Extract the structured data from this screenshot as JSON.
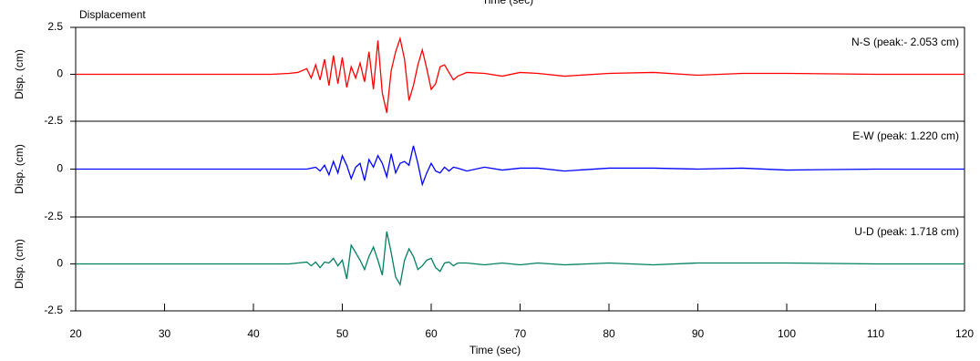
{
  "chart_data": [
    {
      "type": "line",
      "title": "Displacement",
      "xlabel": "Time (sec)",
      "ylabel": "Disp. (cm)",
      "xlim": [
        20,
        120
      ],
      "ylim": [
        -2.5,
        2.5
      ],
      "yticks": [
        2.5,
        0,
        -2.5
      ],
      "x": [
        20,
        42,
        44,
        45,
        46,
        46.5,
        47,
        47.5,
        48,
        48.5,
        49,
        49.5,
        50,
        50.5,
        51,
        51.5,
        52,
        52.5,
        53,
        53.5,
        54,
        54.5,
        55,
        55.5,
        56,
        56.5,
        57,
        57.5,
        58,
        58.5,
        59,
        59.5,
        60,
        60.5,
        61,
        61.5,
        62,
        62.5,
        63,
        64,
        66,
        68,
        70,
        72,
        75,
        80,
        85,
        90,
        95,
        100,
        110,
        120
      ],
      "series": [
        {
          "name": "N-S (peak:- 2.053 cm)",
          "color": "#ff0000",
          "values": [
            0,
            0,
            0.05,
            0.1,
            0.3,
            -0.2,
            0.5,
            -0.3,
            0.8,
            -0.6,
            1.0,
            -0.5,
            0.9,
            -0.7,
            0.4,
            -0.2,
            0.6,
            -0.4,
            1.2,
            -0.8,
            1.8,
            -1.0,
            -2.05,
            0.2,
            1.2,
            1.9,
            0.8,
            -1.4,
            -0.6,
            0.5,
            1.3,
            0.3,
            -0.8,
            -0.5,
            0.4,
            0.5,
            0.1,
            -0.3,
            -0.1,
            0.1,
            0.05,
            -0.1,
            0.1,
            0.05,
            -0.1,
            0.05,
            0.1,
            -0.05,
            0.05,
            0.05,
            0,
            0
          ]
        }
      ]
    },
    {
      "type": "line",
      "ylabel": "Disp. (cm)",
      "xlim": [
        20,
        120
      ],
      "ylim": [
        -2.5,
        2.5
      ],
      "yticks": [
        0,
        -2.5
      ],
      "x": [
        20,
        42,
        44,
        45,
        46,
        46.5,
        47,
        47.5,
        48,
        48.5,
        49,
        49.5,
        50,
        50.5,
        51,
        51.5,
        52,
        52.5,
        53,
        53.5,
        54,
        54.5,
        55,
        55.5,
        56,
        56.5,
        57,
        57.5,
        58,
        58.5,
        59,
        59.5,
        60,
        60.5,
        61,
        61.5,
        62,
        62.5,
        63,
        64,
        66,
        68,
        70,
        72,
        75,
        80,
        85,
        90,
        95,
        100,
        110,
        120
      ],
      "series": [
        {
          "name": "E-W (peak: 1.220 cm)",
          "color": "#0000ff",
          "values": [
            0,
            0,
            0,
            0,
            0,
            0.05,
            0.1,
            -0.1,
            0.2,
            -0.3,
            0.4,
            -0.2,
            0.7,
            0.2,
            -0.5,
            0.1,
            0.3,
            -0.6,
            0.5,
            0.1,
            0.7,
            0.3,
            -0.4,
            0.8,
            -0.2,
            0.3,
            0.4,
            0.2,
            1.22,
            0.3,
            -0.8,
            -0.2,
            0.3,
            -0.1,
            -0.2,
            0.1,
            -0.1,
            0.1,
            0.05,
            -0.1,
            0.1,
            -0.05,
            0.05,
            0.05,
            -0.1,
            0.05,
            0.05,
            0,
            0.05,
            -0.05,
            0,
            0
          ]
        }
      ]
    },
    {
      "type": "line",
      "xlabel": "Time (sec)",
      "ylabel": "Disp. (cm)",
      "xlim": [
        20,
        120
      ],
      "xticks": [
        20,
        30,
        40,
        50,
        60,
        70,
        80,
        90,
        100,
        110,
        120
      ],
      "ylim": [
        -2.5,
        2.5
      ],
      "yticks": [
        0,
        -2.5
      ],
      "x": [
        20,
        42,
        44,
        45,
        46,
        46.5,
        47,
        47.5,
        48,
        48.5,
        49,
        49.5,
        50,
        50.5,
        51,
        51.5,
        52,
        52.5,
        53,
        53.5,
        54,
        54.5,
        55,
        55.5,
        56,
        56.5,
        57,
        57.5,
        58,
        58.5,
        59,
        59.5,
        60,
        60.5,
        61,
        61.5,
        62,
        62.5,
        63,
        64,
        66,
        68,
        70,
        72,
        75,
        80,
        85,
        90,
        95,
        100,
        110,
        120
      ],
      "series": [
        {
          "name": "U-D (peak: 1.718 cm)",
          "color": "#008060",
          "values": [
            0,
            0,
            0,
            0.05,
            0.1,
            -0.1,
            0.1,
            -0.2,
            0.1,
            0.05,
            0.3,
            -0.1,
            0.2,
            -0.8,
            1.0,
            0.6,
            0.2,
            -0.3,
            0.4,
            0.9,
            0.2,
            -0.6,
            1.72,
            0.6,
            -0.7,
            -1.1,
            0.2,
            0.8,
            0.4,
            -0.3,
            -0.1,
            0.2,
            0.3,
            -0.2,
            -0.4,
            0.05,
            0.1,
            -0.1,
            0.05,
            0.05,
            -0.05,
            0.05,
            -0.05,
            0.05,
            -0.05,
            0.05,
            -0.05,
            0.05,
            0.05,
            0.05,
            0,
            0
          ]
        }
      ]
    }
  ]
}
